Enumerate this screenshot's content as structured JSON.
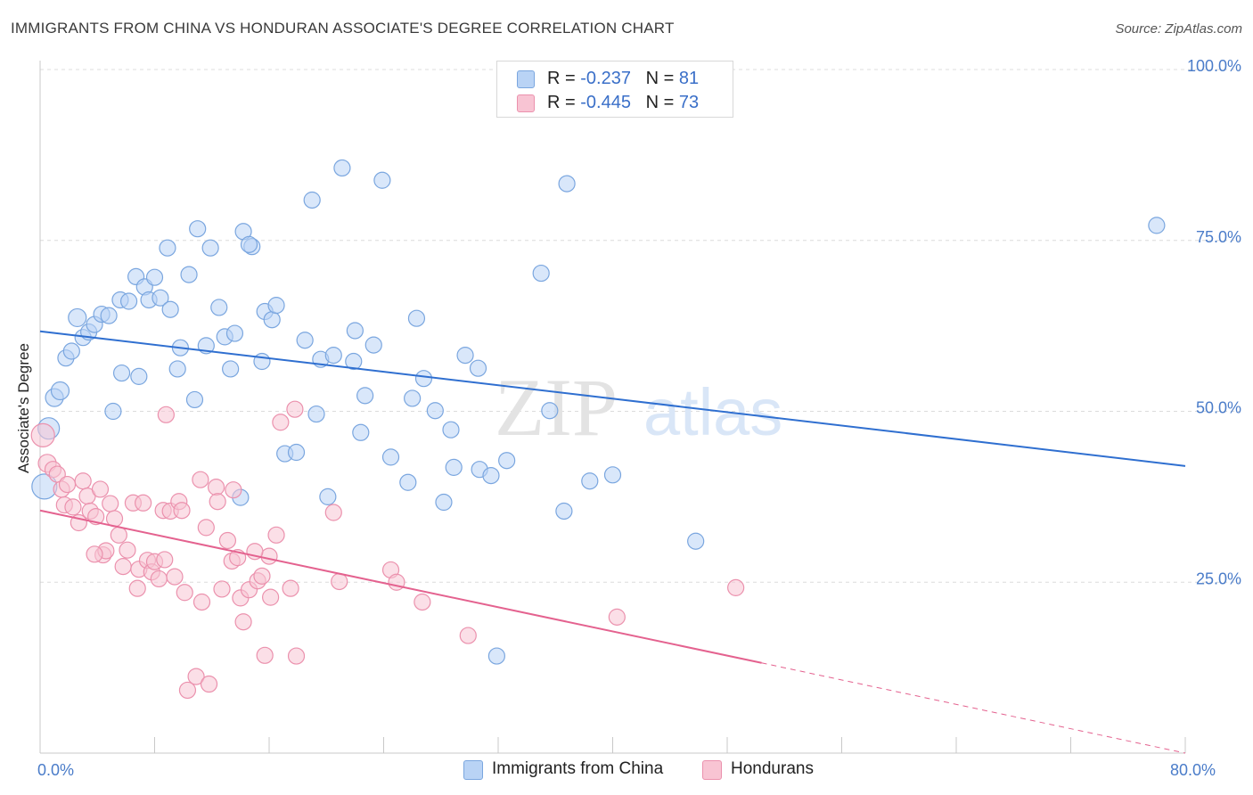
{
  "title": "IMMIGRANTS FROM CHINA VS HONDURAN ASSOCIATE'S DEGREE CORRELATION CHART",
  "source": "Source: ZipAtlas.com",
  "watermark": {
    "zip": "ZIP",
    "atlas": "atlas"
  },
  "legend": {
    "r_label": "R =",
    "n_label": "N =",
    "rows": [
      {
        "r": "-0.237",
        "n": "81"
      },
      {
        "r": "-0.445",
        "n": "73"
      }
    ]
  },
  "colors": {
    "blue_fill": "#b9d3f5",
    "blue_stroke": "#7aa6df",
    "blue_line": "#2f6fd0",
    "pink_fill": "#f8c4d3",
    "pink_stroke": "#eb91ad",
    "pink_line": "#e4628f"
  },
  "chart_data": {
    "type": "scatter",
    "title": "IMMIGRANTS FROM CHINA VS HONDURAN ASSOCIATE'S DEGREE CORRELATION CHART",
    "xlabel": "",
    "ylabel": "Associate's Degree",
    "xlim": [
      0,
      80
    ],
    "ylim": [
      0,
      100
    ],
    "x_tick_labels": [
      "0.0%",
      "80.0%"
    ],
    "y_ticks": [
      25,
      50,
      75,
      100
    ],
    "y_tick_labels": [
      "25.0%",
      "50.0%",
      "75.0%",
      "100.0%"
    ],
    "grid": "horizontal dashed",
    "legend_position": "top-center",
    "series": [
      {
        "name": "Immigrants from China",
        "color": "#7aa6df",
        "trend": {
          "x": [
            0,
            80
          ],
          "y": [
            61.7,
            42.0
          ]
        },
        "points": [
          [
            0.3,
            39.0,
            14
          ],
          [
            0.6,
            47.5,
            12
          ],
          [
            1.0,
            52.0,
            10
          ],
          [
            1.4,
            53.0,
            10
          ],
          [
            1.8,
            57.8,
            9
          ],
          [
            2.2,
            58.8,
            9
          ],
          [
            2.6,
            63.7,
            10
          ],
          [
            3.0,
            60.8,
            9
          ],
          [
            3.4,
            61.6,
            9
          ],
          [
            3.8,
            62.7,
            9
          ],
          [
            4.3,
            64.2,
            9
          ],
          [
            4.8,
            64.0,
            9
          ],
          [
            5.1,
            50.0,
            9
          ],
          [
            5.6,
            66.3,
            9
          ],
          [
            5.7,
            55.6,
            9
          ],
          [
            6.2,
            66.1,
            9
          ],
          [
            6.7,
            69.7,
            9
          ],
          [
            6.9,
            55.1,
            9
          ],
          [
            7.3,
            68.2,
            9
          ],
          [
            7.6,
            66.3,
            9
          ],
          [
            8.0,
            69.6,
            9
          ],
          [
            8.4,
            66.6,
            9
          ],
          [
            8.9,
            73.9,
            9
          ],
          [
            9.1,
            64.9,
            9
          ],
          [
            9.6,
            56.2,
            9
          ],
          [
            9.8,
            59.3,
            9
          ],
          [
            10.4,
            70.0,
            9
          ],
          [
            10.8,
            51.7,
            9
          ],
          [
            11.0,
            76.7,
            9
          ],
          [
            11.6,
            59.6,
            9
          ],
          [
            11.9,
            73.9,
            9
          ],
          [
            12.5,
            65.2,
            9
          ],
          [
            12.9,
            60.9,
            9
          ],
          [
            13.3,
            56.2,
            9
          ],
          [
            13.6,
            61.4,
            9
          ],
          [
            14.0,
            37.4,
            9
          ],
          [
            14.2,
            76.3,
            9
          ],
          [
            14.8,
            74.1,
            9
          ],
          [
            14.6,
            74.4,
            9
          ],
          [
            15.5,
            57.3,
            9
          ],
          [
            15.7,
            64.6,
            9
          ],
          [
            16.2,
            63.4,
            9
          ],
          [
            16.5,
            65.5,
            9
          ],
          [
            17.1,
            43.8,
            9
          ],
          [
            17.9,
            44.0,
            9
          ],
          [
            18.5,
            60.4,
            9
          ],
          [
            19.0,
            80.9,
            9
          ],
          [
            19.3,
            49.6,
            9
          ],
          [
            19.6,
            57.6,
            9
          ],
          [
            20.1,
            37.5,
            9
          ],
          [
            20.5,
            58.2,
            9
          ],
          [
            21.1,
            85.6,
            9
          ],
          [
            21.9,
            57.3,
            9
          ],
          [
            22.0,
            61.8,
            9
          ],
          [
            22.4,
            46.9,
            9
          ],
          [
            22.7,
            52.3,
            9
          ],
          [
            23.3,
            59.7,
            9
          ],
          [
            23.9,
            83.8,
            9
          ],
          [
            24.5,
            43.3,
            9
          ],
          [
            25.7,
            39.6,
            9
          ],
          [
            26.0,
            51.9,
            9
          ],
          [
            26.3,
            63.6,
            9
          ],
          [
            26.8,
            54.8,
            9
          ],
          [
            27.6,
            50.1,
            9
          ],
          [
            28.2,
            36.7,
            9
          ],
          [
            28.7,
            47.3,
            9
          ],
          [
            28.9,
            41.8,
            9
          ],
          [
            29.7,
            58.2,
            9
          ],
          [
            30.6,
            56.3,
            9
          ],
          [
            30.7,
            41.5,
            9
          ],
          [
            31.5,
            40.6,
            9
          ],
          [
            31.9,
            14.2,
            9
          ],
          [
            32.6,
            42.8,
            9
          ],
          [
            35.6,
            50.1,
            9
          ],
          [
            36.6,
            35.4,
            9
          ],
          [
            36.8,
            83.3,
            9
          ],
          [
            38.4,
            39.8,
            9
          ],
          [
            40.0,
            40.7,
            9
          ],
          [
            45.8,
            31.0,
            9
          ],
          [
            78.0,
            77.2,
            9
          ],
          [
            35.0,
            70.2,
            9
          ]
        ]
      },
      {
        "name": "Hondurans",
        "color": "#eb91ad",
        "trend": {
          "x": [
            0,
            50.4
          ],
          "y": [
            35.5,
            13.2
          ]
        },
        "trend_extension": {
          "x": [
            50.4,
            80
          ],
          "y": [
            13.2,
            0.0
          ]
        },
        "points": [
          [
            0.2,
            46.5,
            13
          ],
          [
            0.5,
            42.4,
            10
          ],
          [
            0.9,
            41.5,
            9
          ],
          [
            1.2,
            40.8,
            9
          ],
          [
            1.5,
            38.6,
            9
          ],
          [
            1.7,
            36.3,
            9
          ],
          [
            1.9,
            39.3,
            9
          ],
          [
            2.3,
            36.0,
            9
          ],
          [
            2.7,
            33.7,
            9
          ],
          [
            3.0,
            39.8,
            9
          ],
          [
            3.3,
            37.6,
            9
          ],
          [
            3.5,
            35.4,
            9
          ],
          [
            3.9,
            34.6,
            9
          ],
          [
            4.2,
            38.6,
            9
          ],
          [
            4.4,
            29.0,
            9
          ],
          [
            4.6,
            29.6,
            9
          ],
          [
            4.9,
            36.5,
            9
          ],
          [
            5.2,
            34.3,
            9
          ],
          [
            5.5,
            31.9,
            9
          ],
          [
            5.8,
            27.3,
            9
          ],
          [
            6.1,
            29.7,
            9
          ],
          [
            6.5,
            36.6,
            9
          ],
          [
            6.8,
            24.1,
            9
          ],
          [
            6.9,
            26.9,
            9
          ],
          [
            7.2,
            36.6,
            9
          ],
          [
            7.5,
            28.2,
            9
          ],
          [
            7.8,
            26.5,
            9
          ],
          [
            8.0,
            28.0,
            9
          ],
          [
            8.3,
            25.5,
            9
          ],
          [
            8.6,
            35.5,
            9
          ],
          [
            8.7,
            28.3,
            9
          ],
          [
            8.8,
            49.5,
            9
          ],
          [
            9.1,
            35.4,
            9
          ],
          [
            9.4,
            25.8,
            9
          ],
          [
            9.7,
            36.8,
            9
          ],
          [
            9.9,
            35.5,
            9
          ],
          [
            10.1,
            23.5,
            9
          ],
          [
            10.3,
            9.2,
            9
          ],
          [
            10.9,
            11.2,
            9
          ],
          [
            11.3,
            22.1,
            9
          ],
          [
            11.6,
            33.0,
            9
          ],
          [
            11.8,
            10.1,
            9
          ],
          [
            12.3,
            38.9,
            9
          ],
          [
            12.4,
            36.8,
            9
          ],
          [
            12.7,
            24.0,
            9
          ],
          [
            13.1,
            31.1,
            9
          ],
          [
            13.4,
            28.1,
            9
          ],
          [
            13.5,
            38.5,
            9
          ],
          [
            13.8,
            28.6,
            9
          ],
          [
            14.0,
            22.7,
            9
          ],
          [
            14.2,
            19.2,
            9
          ],
          [
            14.6,
            23.9,
            9
          ],
          [
            15.2,
            25.2,
            9
          ],
          [
            15.5,
            25.9,
            9
          ],
          [
            15.7,
            14.3,
            9
          ],
          [
            16.0,
            28.8,
            9
          ],
          [
            16.1,
            22.8,
            9
          ],
          [
            16.5,
            31.9,
            9
          ],
          [
            16.8,
            48.4,
            9
          ],
          [
            17.5,
            24.1,
            9
          ],
          [
            17.8,
            50.3,
            9
          ],
          [
            17.9,
            14.2,
            9
          ],
          [
            20.5,
            35.2,
            9
          ],
          [
            20.9,
            25.1,
            9
          ],
          [
            24.5,
            26.8,
            9
          ],
          [
            24.9,
            25.0,
            9
          ],
          [
            26.7,
            22.1,
            9
          ],
          [
            29.9,
            17.2,
            9
          ],
          [
            40.3,
            19.9,
            9
          ],
          [
            48.6,
            24.2,
            9
          ],
          [
            15.0,
            29.5,
            9
          ],
          [
            11.2,
            40.0,
            9
          ],
          [
            3.8,
            29.1,
            9
          ]
        ]
      }
    ]
  }
}
